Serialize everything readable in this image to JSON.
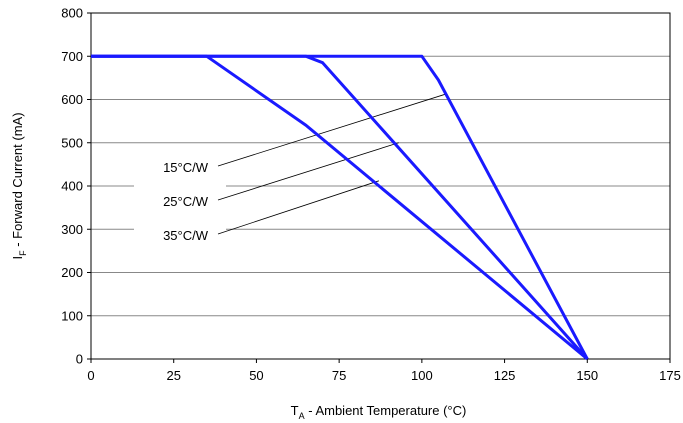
{
  "chart_data": {
    "type": "line",
    "xlabel_main": "T",
    "xlabel_sub": "A",
    "xlabel_rest": " - Ambient Temperature (°C)",
    "ylabel_main": "I",
    "ylabel_sub": "F",
    "ylabel_rest": " - Forward Current (mA)",
    "xlim": [
      0,
      175
    ],
    "ylim": [
      0,
      800
    ],
    "xticks": [
      0,
      25,
      50,
      75,
      100,
      125,
      150,
      175
    ],
    "yticks": [
      0,
      100,
      200,
      300,
      400,
      500,
      600,
      700,
      800
    ],
    "grid": "horizontal",
    "line_color": "#1a1aff",
    "series": [
      {
        "x": [
          0,
          100,
          105,
          150
        ],
        "y": [
          700,
          700,
          645,
          0
        ]
      },
      {
        "x": [
          0,
          65,
          70,
          150
        ],
        "y": [
          700,
          700,
          685,
          0
        ]
      },
      {
        "x": [
          0,
          35,
          65,
          150
        ],
        "y": [
          700,
          700,
          540,
          0
        ]
      }
    ],
    "annotations": [
      {
        "text": "15°C/W",
        "target_x": 107,
        "target_y": 612
      },
      {
        "text": "25°C/W",
        "target_x": 93,
        "target_y": 500
      },
      {
        "text": "35°C/W",
        "target_x": 87,
        "target_y": 412
      }
    ]
  }
}
